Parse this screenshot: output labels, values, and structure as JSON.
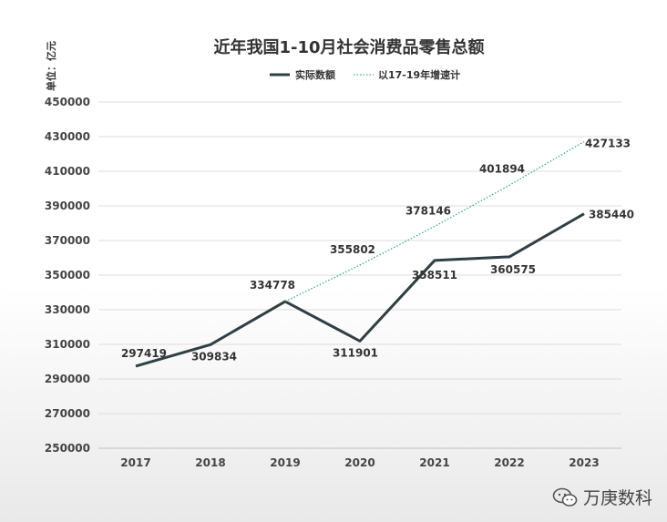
{
  "chart_data": {
    "type": "line",
    "title": "近年我国1-10月社会消费品零售总额",
    "unit_label": "单位：亿元",
    "categories": [
      "2017",
      "2018",
      "2019",
      "2020",
      "2021",
      "2022",
      "2023"
    ],
    "ylim": [
      250000,
      450000
    ],
    "yticks": [
      250000,
      270000,
      290000,
      310000,
      330000,
      350000,
      370000,
      390000,
      410000,
      430000,
      450000
    ],
    "grid": true,
    "legend_position": "top",
    "series": [
      {
        "name": "实际数额",
        "style": "solid",
        "color": "#2f3f45",
        "values": [
          297419,
          309834,
          334778,
          311901,
          358511,
          360575,
          385440
        ]
      },
      {
        "name": "以17-19年增速计",
        "style": "dotted",
        "color": "#3aa6a0",
        "values": [
          null,
          null,
          334778,
          355802,
          378146,
          401894,
          427133
        ]
      }
    ]
  },
  "watermark": {
    "icon": "wechat-icon",
    "text": "万庚数科"
  }
}
